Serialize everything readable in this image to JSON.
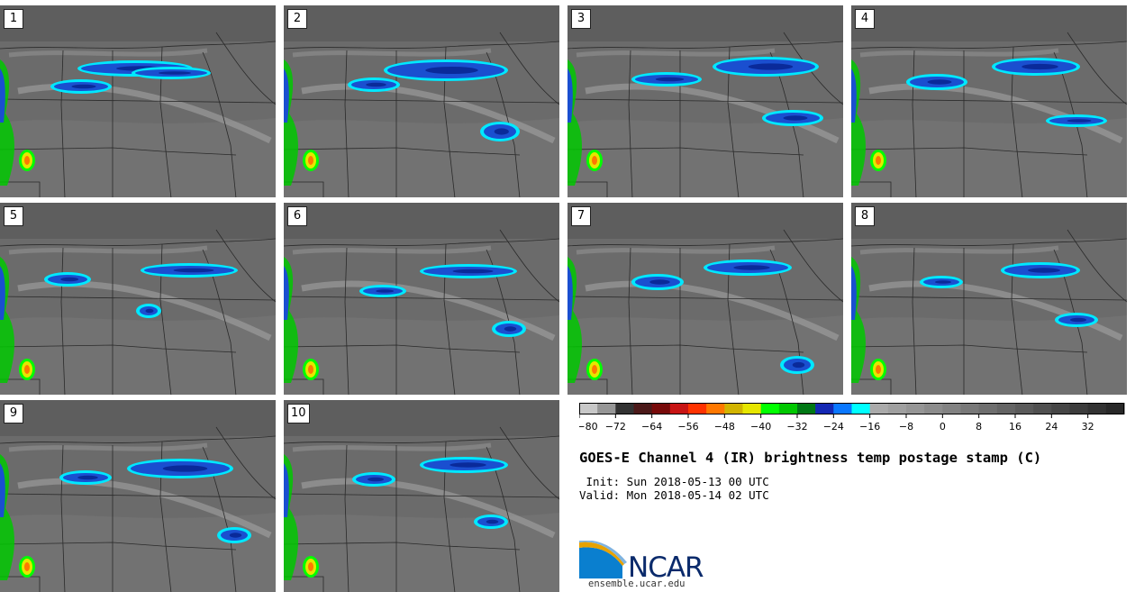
{
  "figure": {
    "title": "GOES-E Channel 4 (IR) brightness temp postage stamp (C)",
    "init_line": " Init: Sun 2018-05-13 00 UTC",
    "valid_line": "Valid: Mon 2018-05-14 02 UTC"
  },
  "members": [
    "1",
    "2",
    "3",
    "4",
    "5",
    "6",
    "7",
    "8",
    "9",
    "10"
  ],
  "colorbar": {
    "min": -80,
    "max": 40,
    "step": 4,
    "tick_labels": [
      "−80",
      "−72",
      "−64",
      "−56",
      "−48",
      "−40",
      "−32",
      "−24",
      "−16",
      "−8",
      "0",
      "8",
      "16",
      "24",
      "32"
    ],
    "colors": [
      "#c8c8c8",
      "#969696",
      "#323232",
      "#4b1919",
      "#780a0a",
      "#c81414",
      "#ff3200",
      "#ff7800",
      "#d2b400",
      "#e6e600",
      "#00ff00",
      "#00c800",
      "#007814",
      "#1428b4",
      "#0a78ff",
      "#00ffff",
      "#aaaaaa",
      "#a0a0a0",
      "#969696",
      "#8c8c8c",
      "#828282",
      "#787878",
      "#6e6e6e",
      "#646464",
      "#5a5a5a",
      "#505050",
      "#464646",
      "#3c3c3c",
      "#323232",
      "#282828"
    ]
  },
  "logo": {
    "name": "NCAR",
    "url": "ensemble.ucar.edu"
  }
}
